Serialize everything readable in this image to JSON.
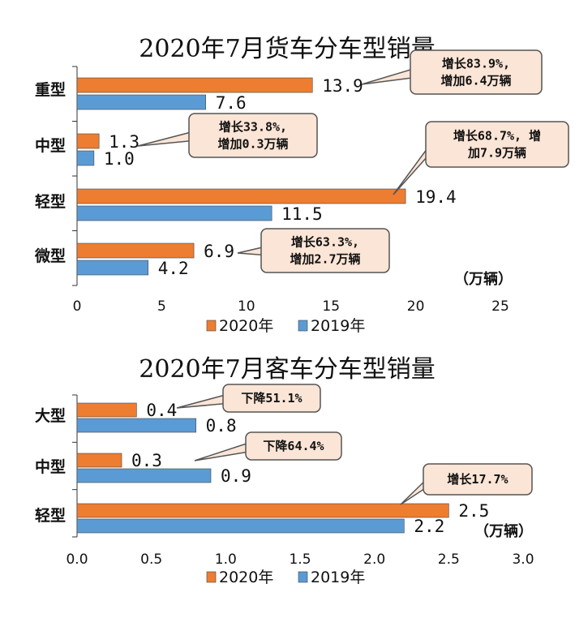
{
  "colors": {
    "s2020": "#ED7D31",
    "s2019": "#5B9BD5",
    "callout_bg": "#FBE5D6",
    "callout_border": "#555555"
  },
  "chart_data": [
    {
      "type": "bar",
      "orientation": "horizontal",
      "title": "2020年7月货车分车型销量",
      "unit_label": "（万辆）",
      "categories": [
        "重型",
        "中型",
        "轻型",
        "微型"
      ],
      "series": [
        {
          "name": "2020年",
          "values": [
            13.9,
            1.3,
            19.4,
            6.9
          ],
          "labels": [
            "13.9",
            "1.3",
            "19.4",
            "6.9"
          ]
        },
        {
          "name": "2019年",
          "values": [
            7.6,
            1.0,
            11.5,
            4.2
          ],
          "labels": [
            "7.6",
            "1.0",
            "11.5",
            "4.2"
          ]
        }
      ],
      "xlim": [
        0,
        25
      ],
      "ticks": [
        "0",
        "5",
        "10",
        "15",
        "20",
        "25"
      ],
      "legend_position": "bottom",
      "annotations": [
        {
          "category": "重型",
          "lines": [
            "增长83.9%,",
            "增加6.4万辆"
          ]
        },
        {
          "category": "中型",
          "lines": [
            "增长33.8%,",
            "增加0.3万辆"
          ]
        },
        {
          "category": "轻型",
          "lines": [
            "增长68.7%, 增",
            "加7.9万辆"
          ]
        },
        {
          "category": "微型",
          "lines": [
            "增长63.3%,",
            "增加2.7万辆"
          ]
        }
      ]
    },
    {
      "type": "bar",
      "orientation": "horizontal",
      "title": "2020年7月客车分车型销量",
      "unit_label": "（万辆）",
      "categories": [
        "大型",
        "中型",
        "轻型"
      ],
      "series": [
        {
          "name": "2020年",
          "values": [
            0.4,
            0.3,
            2.5
          ],
          "labels": [
            "0.4",
            "0.3",
            "2.5"
          ]
        },
        {
          "name": "2019年",
          "values": [
            0.8,
            0.9,
            2.2
          ],
          "labels": [
            "0.8",
            "0.9",
            "2.2"
          ]
        }
      ],
      "xlim": [
        0,
        3.0
      ],
      "ticks": [
        "0.0",
        "0.5",
        "1.0",
        "1.5",
        "2.0",
        "2.5",
        "3.0"
      ],
      "legend_position": "bottom",
      "annotations": [
        {
          "category": "大型",
          "lines": [
            "下降51.1%"
          ]
        },
        {
          "category": "中型",
          "lines": [
            "下降64.4%"
          ]
        },
        {
          "category": "轻型",
          "lines": [
            "增长17.7%"
          ]
        }
      ]
    }
  ]
}
